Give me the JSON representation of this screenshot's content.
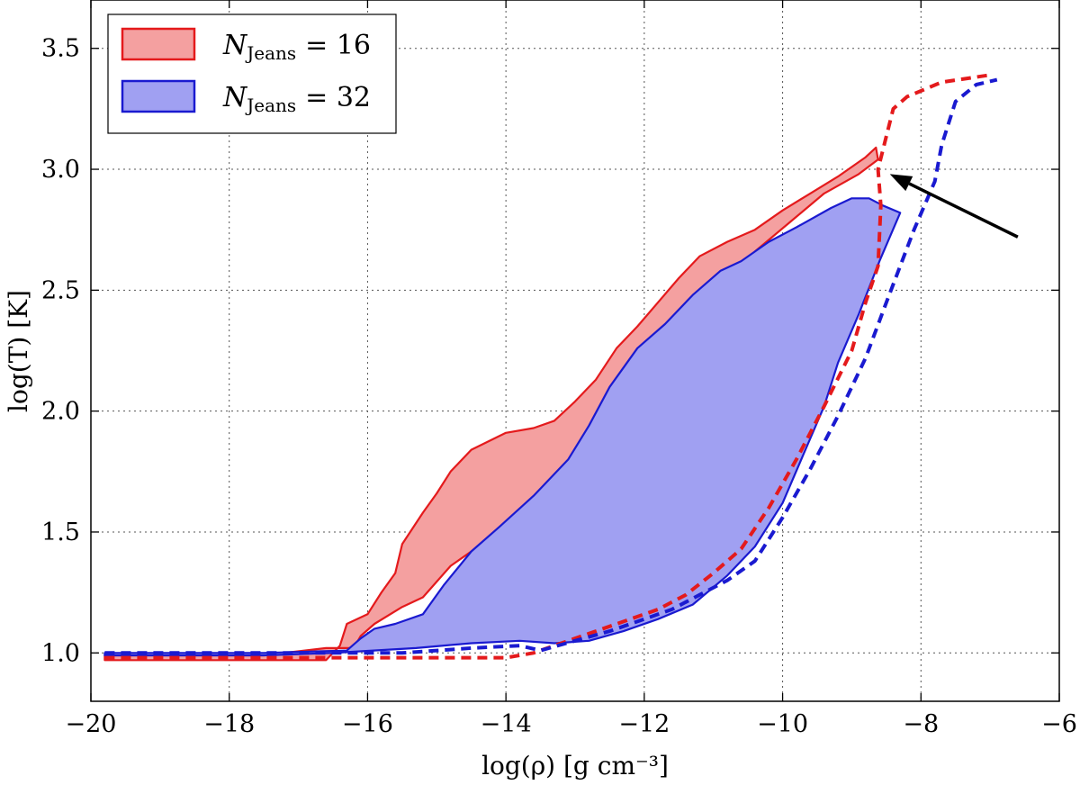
{
  "chart_data": {
    "type": "area",
    "xlabel": "log(ρ) [g cm⁻³]",
    "ylabel": "log(T) [K]",
    "xlim": [
      -20,
      -6
    ],
    "ylim": [
      0.8,
      3.7
    ],
    "xticks": [
      -20,
      -18,
      -16,
      -14,
      -12,
      -10,
      -8,
      -6
    ],
    "yticks": [
      1.0,
      1.5,
      2.0,
      2.5,
      3.0,
      3.5
    ],
    "xtick_labels": [
      "−20",
      "−18",
      "−16",
      "−14",
      "−12",
      "−10",
      "−8",
      "−6"
    ],
    "ytick_labels": [
      "1.0",
      "1.5",
      "2.0",
      "2.5",
      "3.0",
      "3.5"
    ],
    "grid": true,
    "legend_position": "top-left",
    "series": [
      {
        "name": "N_Jeans = 16",
        "legend_symbol": "N",
        "legend_sub": "Jeans",
        "legend_value": "= 16",
        "color": "#e41a1c",
        "fill": "#f4a0a0",
        "region": [
          [
            -19.8,
            0.97
          ],
          [
            -17.5,
            0.97
          ],
          [
            -16.6,
            0.97
          ],
          [
            -16.4,
            1.03
          ],
          [
            -16.3,
            1.12
          ],
          [
            -16.0,
            1.16
          ],
          [
            -15.8,
            1.25
          ],
          [
            -15.6,
            1.33
          ],
          [
            -15.5,
            1.45
          ],
          [
            -15.2,
            1.58
          ],
          [
            -15.0,
            1.66
          ],
          [
            -14.8,
            1.75
          ],
          [
            -14.5,
            1.84
          ],
          [
            -14.0,
            1.91
          ],
          [
            -13.6,
            1.93
          ],
          [
            -13.3,
            1.96
          ],
          [
            -13.0,
            2.04
          ],
          [
            -12.7,
            2.13
          ],
          [
            -12.4,
            2.26
          ],
          [
            -12.1,
            2.35
          ],
          [
            -11.8,
            2.45
          ],
          [
            -11.5,
            2.55
          ],
          [
            -11.2,
            2.64
          ],
          [
            -10.8,
            2.7
          ],
          [
            -10.4,
            2.75
          ],
          [
            -10.0,
            2.83
          ],
          [
            -9.6,
            2.9
          ],
          [
            -9.2,
            2.97
          ],
          [
            -8.8,
            3.05
          ],
          [
            -8.65,
            3.09
          ],
          [
            -8.62,
            3.04
          ],
          [
            -8.9,
            2.98
          ],
          [
            -9.4,
            2.9
          ],
          [
            -9.9,
            2.78
          ],
          [
            -10.4,
            2.66
          ],
          [
            -10.8,
            2.55
          ],
          [
            -11.1,
            2.45
          ],
          [
            -11.5,
            2.35
          ],
          [
            -11.9,
            2.2
          ],
          [
            -12.2,
            2.08
          ],
          [
            -12.5,
            1.96
          ],
          [
            -12.7,
            1.85
          ],
          [
            -13.0,
            1.76
          ],
          [
            -13.3,
            1.68
          ],
          [
            -13.7,
            1.58
          ],
          [
            -14.1,
            1.5
          ],
          [
            -14.5,
            1.42
          ],
          [
            -14.8,
            1.36
          ],
          [
            -15.2,
            1.23
          ],
          [
            -15.5,
            1.19
          ],
          [
            -15.9,
            1.12
          ],
          [
            -16.1,
            1.07
          ],
          [
            -16.2,
            1.02
          ],
          [
            -16.6,
            1.02
          ],
          [
            -17.5,
            0.99
          ],
          [
            -19.8,
            0.99
          ]
        ],
        "dashed": [
          [
            -19.8,
            0.98
          ],
          [
            -17.5,
            0.98
          ],
          [
            -16.5,
            0.98
          ],
          [
            -14.0,
            0.98
          ],
          [
            -13.6,
            1.0
          ],
          [
            -13.3,
            1.03
          ],
          [
            -12.8,
            1.08
          ],
          [
            -12.3,
            1.13
          ],
          [
            -11.8,
            1.18
          ],
          [
            -11.4,
            1.24
          ],
          [
            -11.0,
            1.33
          ],
          [
            -10.6,
            1.43
          ],
          [
            -10.2,
            1.6
          ],
          [
            -9.8,
            1.8
          ],
          [
            -9.4,
            2.02
          ],
          [
            -9.0,
            2.25
          ],
          [
            -8.8,
            2.45
          ],
          [
            -8.62,
            2.6
          ],
          [
            -8.58,
            2.85
          ],
          [
            -8.62,
            3.0
          ],
          [
            -8.4,
            3.25
          ],
          [
            -8.2,
            3.3
          ],
          [
            -7.7,
            3.36
          ],
          [
            -7.0,
            3.39
          ]
        ]
      },
      {
        "name": "N_Jeans = 32",
        "legend_symbol": "N",
        "legend_sub": "Jeans",
        "legend_value": "= 32",
        "color": "#1a1ad0",
        "fill": "#a0a0f2",
        "region": [
          [
            -19.8,
            1.0
          ],
          [
            -17.5,
            1.0
          ],
          [
            -16.3,
            1.01
          ],
          [
            -16.1,
            1.06
          ],
          [
            -15.9,
            1.1
          ],
          [
            -15.6,
            1.12
          ],
          [
            -15.2,
            1.16
          ],
          [
            -14.9,
            1.28
          ],
          [
            -14.5,
            1.42
          ],
          [
            -14.1,
            1.52
          ],
          [
            -13.6,
            1.65
          ],
          [
            -13.1,
            1.8
          ],
          [
            -12.8,
            1.94
          ],
          [
            -12.5,
            2.1
          ],
          [
            -12.1,
            2.26
          ],
          [
            -11.7,
            2.36
          ],
          [
            -11.3,
            2.48
          ],
          [
            -10.9,
            2.58
          ],
          [
            -10.6,
            2.62
          ],
          [
            -10.2,
            2.7
          ],
          [
            -9.8,
            2.76
          ],
          [
            -9.3,
            2.84
          ],
          [
            -9.0,
            2.88
          ],
          [
            -8.75,
            2.88
          ],
          [
            -8.55,
            2.85
          ],
          [
            -8.3,
            2.82
          ],
          [
            -8.6,
            2.62
          ],
          [
            -8.9,
            2.4
          ],
          [
            -9.2,
            2.2
          ],
          [
            -9.4,
            2.02
          ],
          [
            -9.7,
            1.82
          ],
          [
            -10.0,
            1.62
          ],
          [
            -10.4,
            1.44
          ],
          [
            -10.8,
            1.32
          ],
          [
            -11.3,
            1.2
          ],
          [
            -11.8,
            1.14
          ],
          [
            -12.3,
            1.09
          ],
          [
            -12.8,
            1.05
          ],
          [
            -13.3,
            1.04
          ],
          [
            -13.8,
            1.05
          ],
          [
            -14.5,
            1.04
          ],
          [
            -15.3,
            1.02
          ],
          [
            -16.5,
            1.0
          ],
          [
            -17.5,
            0.99
          ],
          [
            -19.8,
            0.99
          ]
        ],
        "dashed": [
          [
            -19.8,
            1.0
          ],
          [
            -17.5,
            1.0
          ],
          [
            -16.5,
            1.0
          ],
          [
            -15.5,
            1.0
          ],
          [
            -14.5,
            1.02
          ],
          [
            -13.8,
            1.03
          ],
          [
            -13.5,
            1.01
          ],
          [
            -13.0,
            1.05
          ],
          [
            -12.5,
            1.09
          ],
          [
            -12.0,
            1.14
          ],
          [
            -11.6,
            1.18
          ],
          [
            -11.2,
            1.24
          ],
          [
            -10.8,
            1.3
          ],
          [
            -10.4,
            1.38
          ],
          [
            -10.0,
            1.56
          ],
          [
            -9.6,
            1.76
          ],
          [
            -9.2,
            1.98
          ],
          [
            -8.8,
            2.22
          ],
          [
            -8.5,
            2.45
          ],
          [
            -8.1,
            2.75
          ],
          [
            -7.8,
            2.95
          ],
          [
            -7.7,
            3.1
          ],
          [
            -7.5,
            3.28
          ],
          [
            -7.2,
            3.35
          ],
          [
            -6.9,
            3.37
          ]
        ]
      }
    ],
    "annotations": [
      {
        "type": "arrow",
        "from": [
          -6.6,
          2.72
        ],
        "to": [
          -8.45,
          2.98
        ],
        "color": "#000000"
      }
    ]
  }
}
